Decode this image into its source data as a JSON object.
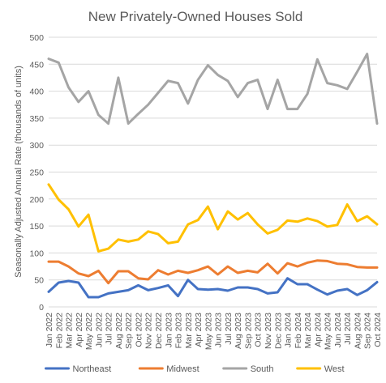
{
  "chart_data": {
    "type": "line",
    "title": "New Privately-Owned Houses Sold",
    "xlabel": "",
    "ylabel": "Seasonally Adjusted Annual Rate (thousands of units)",
    "ylim": [
      0,
      500
    ],
    "yticks": [
      0,
      50,
      100,
      150,
      200,
      250,
      300,
      350,
      400,
      450,
      500
    ],
    "grid": true,
    "legend_position": "bottom",
    "categories": [
      "Jan 2022",
      "Feb 2022",
      "Mar 2022",
      "Apr 2022",
      "May 2022",
      "Jun 2022",
      "Jul 2022",
      "Aug 2022",
      "Sep 2022",
      "Oct 2022",
      "Nov 2022",
      "Dec 2022",
      "Jan 2023",
      "Feb 2023",
      "Mar 2023",
      "Apr 2023",
      "May 2023",
      "Jun 2023",
      "Jul 2023",
      "Aug 2023",
      "Sep 2023",
      "Oct 2023",
      "Nov 2023",
      "Dec 2023",
      "Jan 2024",
      "Feb 2024",
      "Mar 2024",
      "Apr 2024",
      "May 2024",
      "Jun 2024",
      "Jul 2024",
      "Aug 2024",
      "Sep 2024",
      "Oct 2024"
    ],
    "series": [
      {
        "name": "Northeast",
        "color": "#4472c4",
        "values": [
          28,
          45,
          48,
          45,
          18,
          18,
          25,
          28,
          31,
          40,
          31,
          35,
          40,
          20,
          50,
          33,
          32,
          33,
          30,
          36,
          36,
          33,
          25,
          27,
          53,
          42,
          42,
          32,
          23,
          30,
          33,
          22,
          31,
          46
        ]
      },
      {
        "name": "Midwest",
        "color": "#ed7d31",
        "values": [
          84,
          84,
          75,
          62,
          57,
          67,
          44,
          66,
          66,
          53,
          51,
          68,
          60,
          67,
          63,
          68,
          75,
          60,
          75,
          63,
          67,
          64,
          80,
          62,
          81,
          75,
          82,
          86,
          85,
          80,
          79,
          74,
          73,
          73
        ]
      },
      {
        "name": "South",
        "color": "#a5a5a5",
        "values": [
          460,
          453,
          407,
          380,
          400,
          356,
          340,
          425,
          340,
          358,
          375,
          397,
          419,
          415,
          377,
          421,
          448,
          430,
          419,
          389,
          415,
          421,
          367,
          421,
          367,
          367,
          395,
          459,
          415,
          411,
          404,
          436,
          469,
          340
        ]
      },
      {
        "name": "West",
        "color": "#ffc000",
        "values": [
          227,
          199,
          181,
          149,
          171,
          103,
          108,
          125,
          121,
          125,
          140,
          135,
          118,
          121,
          153,
          161,
          186,
          144,
          177,
          162,
          174,
          153,
          136,
          143,
          160,
          158,
          164,
          159,
          149,
          152,
          190,
          159,
          168,
          153
        ]
      }
    ]
  }
}
